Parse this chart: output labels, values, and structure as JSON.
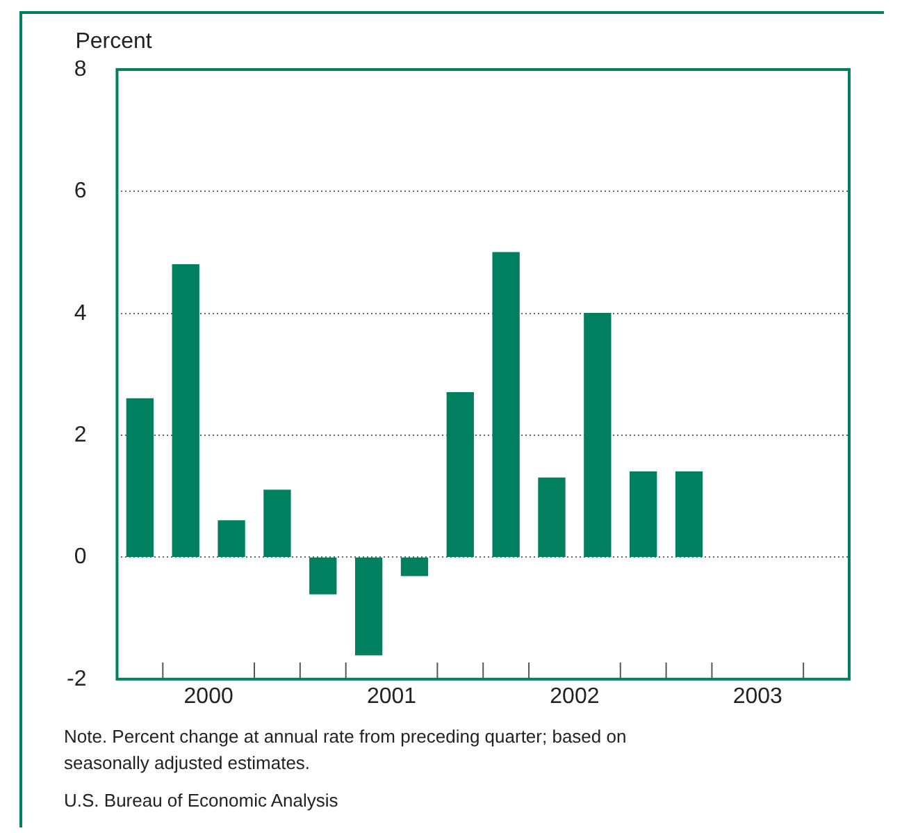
{
  "chart_data": {
    "type": "bar",
    "ylabel": "Percent",
    "x": [
      2000.125,
      2000.375,
      2000.625,
      2000.875,
      2001.125,
      2001.375,
      2001.625,
      2001.875,
      2002.125,
      2002.375,
      2002.625,
      2002.875,
      2003.125
    ],
    "values": [
      2.6,
      4.8,
      0.6,
      1.1,
      -0.6,
      -1.6,
      -0.3,
      2.7,
      5.0,
      1.3,
      4.0,
      1.4,
      1.4
    ],
    "color": "#00805f",
    "xlim": [
      2000,
      2004
    ],
    "xticks": [
      {
        "value": 2000.25,
        "label": null
      },
      {
        "value": 2000.5,
        "label": "2000"
      },
      {
        "value": 2000.75,
        "label": null
      },
      {
        "value": 2001,
        "label": null
      },
      {
        "value": 2001.25,
        "label": null
      },
      {
        "value": 2001.5,
        "label": "2001"
      },
      {
        "value": 2001.75,
        "label": null
      },
      {
        "value": 2002,
        "label": null
      },
      {
        "value": 2002.25,
        "label": null
      },
      {
        "value": 2002.5,
        "label": "2002"
      },
      {
        "value": 2002.75,
        "label": null
      },
      {
        "value": 2003,
        "label": null
      },
      {
        "value": 2003.25,
        "label": null
      },
      {
        "value": 2003.5,
        "label": "2003"
      },
      {
        "value": 2003.75,
        "label": null
      }
    ],
    "ylim": [
      -2,
      8
    ],
    "yticks": [
      -2,
      0,
      2,
      4,
      6,
      8
    ],
    "grid": "y",
    "annotations": [
      "Note. Percent change at annual rate from preceding quarter; based on seasonally adjusted estimates.",
      "U.S. Bureau of Economic Analysis"
    ]
  }
}
